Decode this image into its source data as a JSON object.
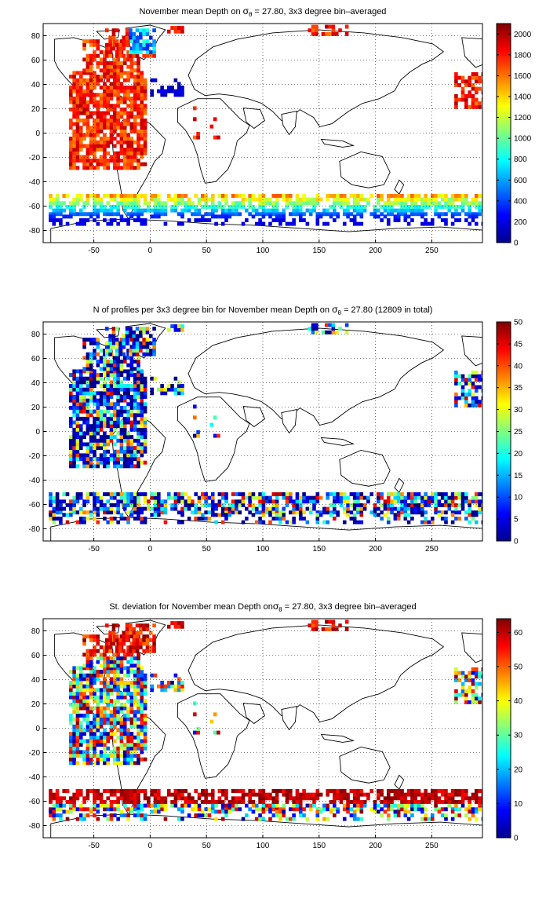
{
  "panels": [
    {
      "title_pre": "November mean Depth on ",
      "title_sigma": "σ",
      "title_sub": "θ",
      "title_post": " = 27.80, 3x3 degree bin–averaged",
      "colorbar_ticks": [
        "0",
        "200",
        "400",
        "600",
        "800",
        "1000",
        "1200",
        "1400",
        "1600",
        "1800",
        "2000"
      ],
      "colorbar_max": 2100
    },
    {
      "title_pre": "N of profiles per 3x3 degree bin for November mean Depth on ",
      "title_sigma": "σ",
      "title_sub": "θ",
      "title_post": " = 27.80 (12809 in total)",
      "colorbar_ticks": [
        "0",
        "5",
        "10",
        "15",
        "20",
        "25",
        "30",
        "35",
        "40",
        "45",
        "50"
      ],
      "colorbar_max": 50
    },
    {
      "title_pre": "St. deviation for November mean Depth on",
      "title_sigma": "σ",
      "title_sub": "θ",
      "title_post": " = 27.80, 3x3 degree bin–averaged",
      "colorbar_ticks": [
        "0",
        "10",
        "20",
        "30",
        "40",
        "50",
        "60"
      ],
      "colorbar_max": 64
    }
  ],
  "x_ticks": [
    "-50",
    "0",
    "50",
    "100",
    "150",
    "200",
    "250"
  ],
  "y_ticks": [
    "80",
    "60",
    "40",
    "20",
    "0",
    "-20",
    "-40",
    "-60",
    "-80"
  ],
  "x_range": [
    -95,
    295
  ],
  "y_range": [
    -90,
    90
  ],
  "grid": "dotted",
  "colormap": "jet"
}
